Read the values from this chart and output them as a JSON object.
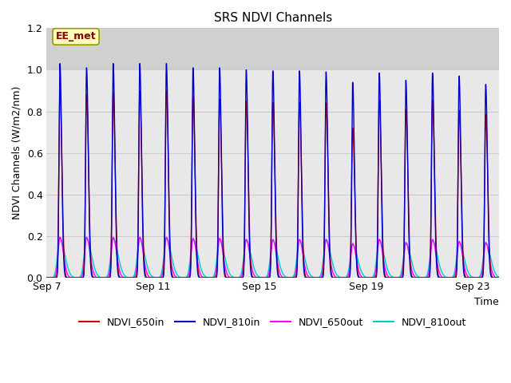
{
  "title": "SRS NDVI Channels",
  "ylabel": "NDVI Channels (W/m2/nm)",
  "xlabel": "Time",
  "annotation": "EE_met",
  "ylim": [
    0.0,
    1.2
  ],
  "fig_facecolor": "#ffffff",
  "plot_facecolor": "#e8e8e8",
  "upper_band_color": "#d0d0d0",
  "grid_color": "#cccccc",
  "series": {
    "NDVI_650in": {
      "color": "#cc0000",
      "lw": 1.0
    },
    "NDVI_810in": {
      "color": "#0000cc",
      "lw": 1.0
    },
    "NDVI_650out": {
      "color": "#ff00ff",
      "lw": 1.0
    },
    "NDVI_810out": {
      "color": "#00cccc",
      "lw": 1.0
    }
  },
  "xtick_labels": [
    "Sep 7",
    "Sep 11",
    "Sep 15",
    "Sep 19",
    "Sep 23"
  ],
  "xtick_positions": [
    0,
    4,
    8,
    12,
    16
  ],
  "num_cycles": 17,
  "peaks_810in": [
    1.03,
    1.01,
    1.03,
    1.03,
    1.03,
    1.01,
    1.01,
    1.0,
    0.995,
    0.995,
    0.99,
    0.94,
    0.985,
    0.95,
    0.985,
    0.97,
    0.93
  ],
  "peaks_650in": [
    0.9,
    0.88,
    0.89,
    0.9,
    0.9,
    0.87,
    0.86,
    0.85,
    0.845,
    0.845,
    0.84,
    0.72,
    0.855,
    0.81,
    0.855,
    0.805,
    0.785
  ],
  "peaks_650out": [
    0.195,
    0.195,
    0.195,
    0.195,
    0.195,
    0.19,
    0.19,
    0.185,
    0.185,
    0.185,
    0.185,
    0.165,
    0.185,
    0.17,
    0.185,
    0.175,
    0.17
  ],
  "peaks_810out": [
    0.19,
    0.19,
    0.19,
    0.19,
    0.19,
    0.185,
    0.185,
    0.18,
    0.18,
    0.18,
    0.18,
    0.16,
    0.18,
    0.165,
    0.18,
    0.17,
    0.165
  ]
}
